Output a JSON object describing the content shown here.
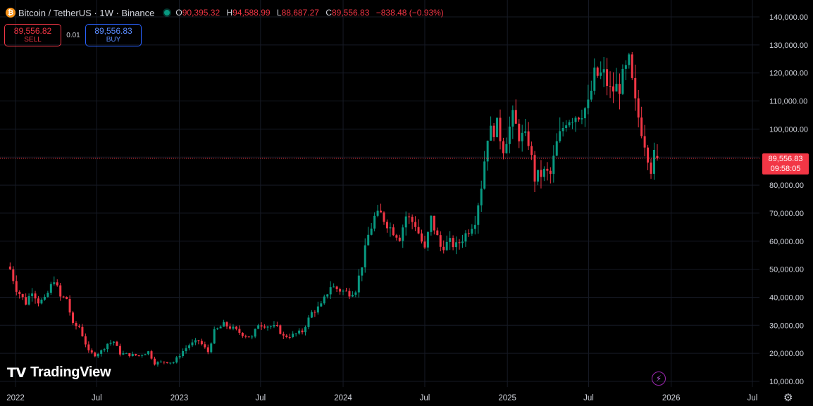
{
  "header": {
    "symbol": "Bitcoin / TetherUS · 1W · Binance",
    "coin_icon": "bitcoin-icon",
    "ohlc": {
      "o_label": "O",
      "o_value": "90,395.32",
      "h_label": "H",
      "h_value": "94,588.99",
      "l_label": "L",
      "l_value": "88,687.27",
      "c_label": "C",
      "c_value": "89,556.83",
      "change": "−838.48 (−0.93%)"
    }
  },
  "trade": {
    "sell_price": "89,556.82",
    "sell_label": "SELL",
    "quantity": "0.01",
    "buy_price": "89,556.83",
    "buy_label": "BUY"
  },
  "last_price": {
    "value": "89,556.83",
    "countdown": "09:58:05"
  },
  "branding": {
    "logo_text": "TradingView",
    "logo_mark": "TV"
  },
  "colors": {
    "up": "#089981",
    "down": "#f23645",
    "grid": "#161a25",
    "background": "#000000",
    "buy": "#2962ff"
  },
  "chart_data": {
    "type": "candlestick",
    "interval": "1W",
    "ylim": [
      10000,
      140000
    ],
    "y_ticks": [
      "10,000.00",
      "20,000.00",
      "30,000.00",
      "40,000.00",
      "50,000.00",
      "60,000.00",
      "70,000.00",
      "80,000.00",
      "90,000.00",
      "100,000.00",
      "110,000.00",
      "120,000.00",
      "130,000.00",
      "140,000.00"
    ],
    "x_labels": [
      {
        "label": "2022",
        "date": "2022-01-01"
      },
      {
        "label": "Jul",
        "date": "2022-07-01"
      },
      {
        "label": "2023",
        "date": "2023-01-01"
      },
      {
        "label": "Jul",
        "date": "2023-07-01"
      },
      {
        "label": "2024",
        "date": "2024-01-01"
      },
      {
        "label": "Jul",
        "date": "2024-07-01"
      },
      {
        "label": "2025",
        "date": "2025-01-01"
      },
      {
        "label": "Jul",
        "date": "2025-07-01"
      },
      {
        "label": "2026",
        "date": "2026-01-01"
      },
      {
        "label": "Jul",
        "date": "2026-07-01"
      }
    ],
    "price_line": 89556.83,
    "close_points": [
      [
        "2021-12-20",
        50000
      ],
      [
        "2022-01-03",
        43000
      ],
      [
        "2022-01-24",
        38000
      ],
      [
        "2022-02-07",
        42500
      ],
      [
        "2022-02-21",
        38500
      ],
      [
        "2022-03-07",
        39000
      ],
      [
        "2022-03-28",
        46500
      ],
      [
        "2022-04-11",
        40000
      ],
      [
        "2022-04-25",
        39500
      ],
      [
        "2022-05-09",
        30000
      ],
      [
        "2022-05-23",
        29500
      ],
      [
        "2022-06-13",
        20500
      ],
      [
        "2022-06-27",
        19500
      ],
      [
        "2022-07-11",
        20800
      ],
      [
        "2022-07-25",
        23500
      ],
      [
        "2022-08-08",
        24200
      ],
      [
        "2022-08-22",
        20000
      ],
      [
        "2022-09-12",
        19500
      ],
      [
        "2022-10-03",
        19200
      ],
      [
        "2022-10-24",
        20600
      ],
      [
        "2022-11-07",
        16500
      ],
      [
        "2022-11-28",
        17000
      ],
      [
        "2022-12-19",
        16800
      ],
      [
        "2023-01-09",
        20800
      ],
      [
        "2023-01-23",
        23000
      ],
      [
        "2023-02-13",
        24500
      ],
      [
        "2023-03-06",
        20500
      ],
      [
        "2023-03-20",
        27800
      ],
      [
        "2023-04-10",
        30300
      ],
      [
        "2023-05-01",
        28800
      ],
      [
        "2023-05-22",
        26800
      ],
      [
        "2023-06-12",
        25600
      ],
      [
        "2023-06-26",
        30500
      ],
      [
        "2023-07-17",
        29800
      ],
      [
        "2023-08-07",
        29200
      ],
      [
        "2023-08-21",
        26000
      ],
      [
        "2023-09-11",
        26500
      ],
      [
        "2023-10-02",
        27800
      ],
      [
        "2023-10-23",
        34500
      ],
      [
        "2023-11-13",
        37000
      ],
      [
        "2023-12-04",
        44000
      ],
      [
        "2023-12-25",
        42500
      ],
      [
        "2024-01-15",
        41500
      ],
      [
        "2024-01-29",
        42800
      ],
      [
        "2024-02-12",
        51700
      ],
      [
        "2024-02-26",
        62000
      ],
      [
        "2024-03-11",
        68500
      ],
      [
        "2024-03-25",
        69500
      ],
      [
        "2024-04-15",
        64800
      ],
      [
        "2024-05-06",
        61500
      ],
      [
        "2024-05-20",
        69000
      ],
      [
        "2024-06-10",
        66000
      ],
      [
        "2024-07-01",
        56800
      ],
      [
        "2024-07-15",
        68000
      ],
      [
        "2024-08-05",
        58000
      ],
      [
        "2024-08-26",
        59500
      ],
      [
        "2024-09-09",
        58200
      ],
      [
        "2024-09-30",
        62500
      ],
      [
        "2024-10-21",
        67800
      ],
      [
        "2024-11-04",
        80000
      ],
      [
        "2024-11-18",
        98000
      ],
      [
        "2024-12-09",
        101000
      ],
      [
        "2024-12-23",
        93500
      ],
      [
        "2025-01-13",
        104000
      ],
      [
        "2025-01-27",
        97800
      ],
      [
        "2025-02-17",
        95800
      ],
      [
        "2025-03-03",
        82500
      ],
      [
        "2025-03-24",
        84500
      ],
      [
        "2025-04-07",
        83700
      ],
      [
        "2025-04-21",
        94600
      ],
      [
        "2025-05-12",
        103500
      ],
      [
        "2025-05-26",
        104600
      ],
      [
        "2025-06-09",
        105500
      ],
      [
        "2025-06-30",
        108300
      ],
      [
        "2025-07-14",
        119000
      ],
      [
        "2025-08-04",
        119300
      ],
      [
        "2025-08-18",
        113500
      ],
      [
        "2025-09-08",
        115300
      ],
      [
        "2025-09-29",
        123500
      ],
      [
        "2025-10-13",
        108700
      ],
      [
        "2025-11-03",
        95500
      ],
      [
        "2025-11-17",
        86000
      ],
      [
        "2025-11-24",
        90395.32
      ],
      [
        "2025-12-01",
        89556.83
      ]
    ],
    "last_candle": {
      "date": "2025-12-01",
      "open": 90395.32,
      "high": 94588.99,
      "low": 88687.27,
      "close": 89556.83
    },
    "grid": true
  }
}
